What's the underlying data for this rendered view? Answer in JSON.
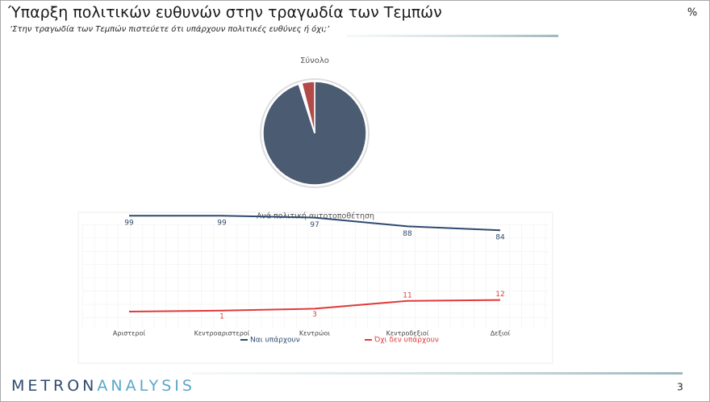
{
  "header": {
    "title": "Ύπαρξη πολιτικών ευθυνών στην τραγωδία των Τεμπών",
    "subtitle": "‘Στην τραγωδία των Τεμπών πιστεύετε ότι υπάρχουν πολιτικές ευθύνες ή όχι;’",
    "unit": "%"
  },
  "chart_data": [
    {
      "type": "pie",
      "title": "Σύνολο",
      "categories": [
        "Ναι υπάρχουν",
        null,
        "Όχι δεν υπάρχουν"
      ],
      "values": [
        95,
        1,
        4
      ],
      "colors": [
        "#4a5b72",
        "#ffffff",
        "#b24a4a"
      ]
    },
    {
      "type": "line",
      "title": "Ανά πολιτική αυτοτοποθέτηση",
      "categories": [
        "Αριστεροί",
        "Κεντροαριστεροί",
        "Κεντρώοι",
        "Κεντροδεξιοί",
        "Δεξιοί"
      ],
      "series": [
        {
          "name": "Ναι υπάρχουν",
          "color": "#2f4a6e",
          "values": [
            99,
            99,
            97,
            88,
            84
          ]
        },
        {
          "name": "Όχι δεν υπάρχουν",
          "color": "#e03a3a",
          "values": [
            0,
            1,
            3,
            11,
            12
          ],
          "value_labels": [
            null,
            "1",
            "3",
            "11",
            "12"
          ]
        }
      ],
      "ylim": [
        0,
        100
      ],
      "legend": "bottom"
    }
  ],
  "footer": {
    "logo_left": "METRON",
    "logo_right": "ANALYSIS",
    "page": "3"
  }
}
